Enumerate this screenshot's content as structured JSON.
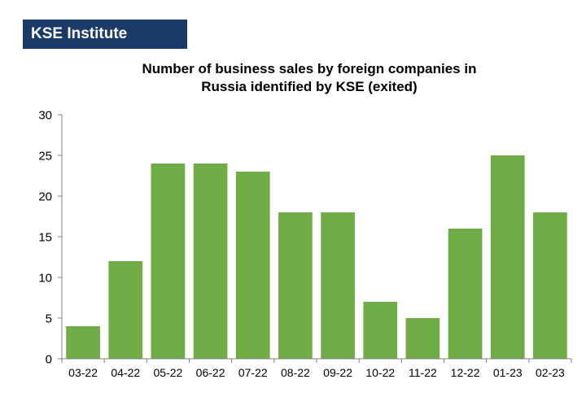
{
  "brand": {
    "label": "KSE Institute"
  },
  "colors": {
    "brand_background": "#1b3a68",
    "bar": "#70ad47",
    "axis": "#808080"
  },
  "chart_data": {
    "type": "bar",
    "title": "Number of business sales by foreign companies in Russia identified by KSE (exited)",
    "title_lines": [
      "Number of business sales by foreign companies in",
      "Russia identified by KSE (exited)"
    ],
    "xlabel": "",
    "ylabel": "",
    "categories": [
      "03-22",
      "04-22",
      "05-22",
      "06-22",
      "07-22",
      "08-22",
      "09-22",
      "10-22",
      "11-22",
      "12-22",
      "01-23",
      "02-23"
    ],
    "values": [
      4,
      12,
      24,
      24,
      23,
      18,
      18,
      7,
      5,
      16,
      25,
      18
    ],
    "ylim": [
      0,
      30
    ],
    "yticks": [
      0,
      5,
      10,
      15,
      20,
      25,
      30
    ],
    "grid": false,
    "legend": "none"
  }
}
